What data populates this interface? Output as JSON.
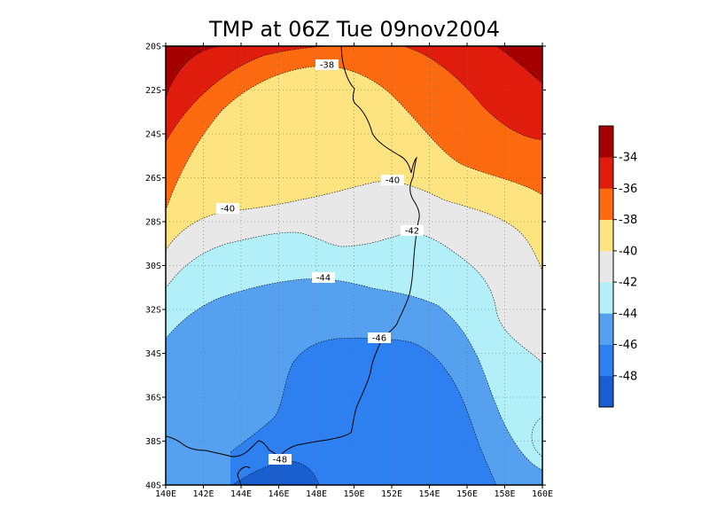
{
  "title": "TMP at 06Z Tue 09nov2004",
  "map": {
    "lon_range": [
      140,
      160
    ],
    "lat_range": [
      -40,
      -20
    ],
    "x_tick_labels": [
      "140E",
      "142E",
      "144E",
      "146E",
      "148E",
      "150E",
      "152E",
      "154E",
      "156E",
      "158E",
      "160E"
    ],
    "y_tick_labels": [
      "20S",
      "22S",
      "24S",
      "26S",
      "28S",
      "30S",
      "32S",
      "34S",
      "36S",
      "38S",
      "40S"
    ],
    "grid": "dotted"
  },
  "colorbar": {
    "colors": [
      "#1a5fd0",
      "#2e7ff0",
      "#55a0ef",
      "#b3eff8",
      "#e8e8e8",
      "#fde480",
      "#fd6a10",
      "#e01c0c",
      "#a50000"
    ],
    "labels": [
      "-48",
      "-46",
      "-44",
      "-42",
      "-40",
      "-38",
      "-36",
      "-34"
    ]
  },
  "contour_labels": [
    {
      "text": "-38"
    },
    {
      "text": "-40"
    },
    {
      "text": "-40"
    },
    {
      "text": "-42"
    },
    {
      "text": "-44"
    },
    {
      "text": "-46"
    },
    {
      "text": "-48"
    }
  ]
}
